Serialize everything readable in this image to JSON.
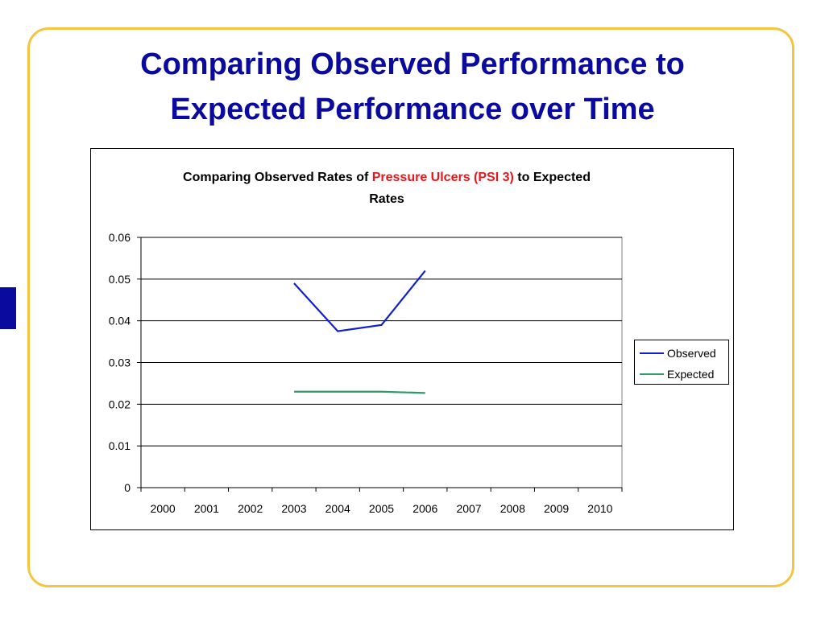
{
  "slide": {
    "title_line1": "Comparing Observed Performance to",
    "title_line2": "Expected Performance over Time"
  },
  "colors": {
    "frame": "#f5c542",
    "title": "#0a0a9e",
    "accent_tab": "#0a0a9e",
    "highlight": "#e8151b"
  },
  "chart_data": {
    "type": "line",
    "title_parts": [
      "Comparing Observed Rates of ",
      "Pressure Ulcers (PSI 3)",
      " to Expected",
      "Rates"
    ],
    "x": [
      2000,
      2001,
      2002,
      2003,
      2004,
      2005,
      2006,
      2007,
      2008,
      2009,
      2010
    ],
    "x_tick_labels": [
      "2000",
      "2001",
      "2002",
      "2003",
      "2004",
      "2005",
      "2006",
      "2007",
      "2008",
      "2009",
      "2010"
    ],
    "ylim": [
      0,
      0.06
    ],
    "y_tick_labels": [
      "0",
      "0.01",
      "0.02",
      "0.03",
      "0.04",
      "0.05",
      "0.06"
    ],
    "y_ticks": [
      0,
      0.01,
      0.02,
      0.03,
      0.04,
      0.05,
      0.06
    ],
    "grid": "horizontal",
    "legend_position": "right",
    "series": [
      {
        "name": "Observed",
        "color": "#1020d0",
        "x": [
          2003,
          2004,
          2005,
          2006
        ],
        "values": [
          0.049,
          0.0375,
          0.039,
          0.052
        ]
      },
      {
        "name": "Expected",
        "color": "#2e9a6a",
        "x": [
          2003,
          2004,
          2005,
          2006
        ],
        "values": [
          0.023,
          0.023,
          0.023,
          0.0227
        ]
      }
    ]
  }
}
